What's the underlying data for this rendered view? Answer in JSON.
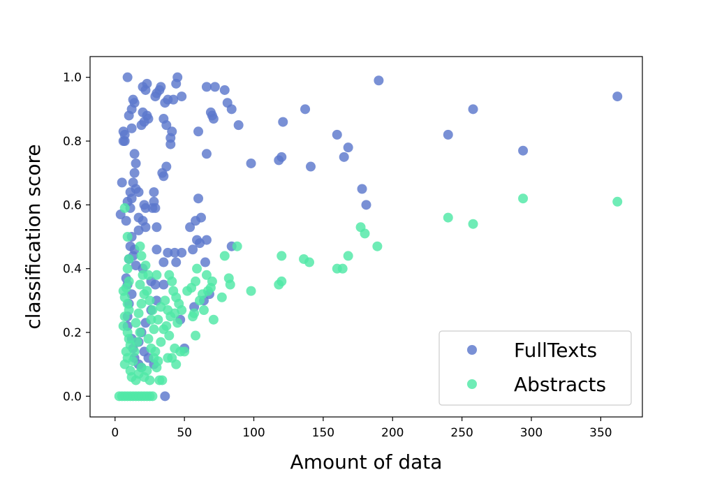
{
  "chart_data": {
    "type": "scatter",
    "title": "",
    "xlabel": "Amount of data",
    "ylabel": "classification score",
    "xlim": [
      -18,
      380
    ],
    "ylim": [
      -0.065,
      1.065
    ],
    "xticks": [
      "0",
      "50",
      "100",
      "150",
      "200",
      "250",
      "300",
      "350"
    ],
    "xtick_values": [
      0,
      50,
      100,
      150,
      200,
      250,
      300,
      350
    ],
    "yticks": [
      "0.0",
      "0.2",
      "0.4",
      "0.6",
      "0.8",
      "1.0"
    ],
    "ytick_values": [
      0.0,
      0.2,
      0.4,
      0.6,
      0.8,
      1.0
    ],
    "grid": false,
    "legend_position": "lower-right",
    "series": [
      {
        "name": "FullTexts",
        "color": "#5b78cc",
        "points": [
          [
            9,
            1.0
          ],
          [
            20,
            0.97
          ],
          [
            23,
            0.98
          ],
          [
            30,
            0.95
          ],
          [
            33,
            0.97
          ],
          [
            32,
            0.96
          ],
          [
            45,
            1.0
          ],
          [
            44,
            0.98
          ],
          [
            48,
            0.94
          ],
          [
            42,
            0.93
          ],
          [
            38,
            0.93
          ],
          [
            36,
            0.92
          ],
          [
            29,
            0.94
          ],
          [
            22,
            0.96
          ],
          [
            13,
            0.93
          ],
          [
            14,
            0.92
          ],
          [
            10,
            0.88
          ],
          [
            12,
            0.9
          ],
          [
            20,
            0.89
          ],
          [
            23,
            0.88
          ],
          [
            24,
            0.87
          ],
          [
            21,
            0.86
          ],
          [
            19,
            0.85
          ],
          [
            12,
            0.84
          ],
          [
            6,
            0.83
          ],
          [
            7,
            0.82
          ],
          [
            6,
            0.8
          ],
          [
            7,
            0.8
          ],
          [
            35,
            0.87
          ],
          [
            37,
            0.85
          ],
          [
            41,
            0.83
          ],
          [
            40,
            0.81
          ],
          [
            40,
            0.79
          ],
          [
            37,
            0.72
          ],
          [
            34,
            0.7
          ],
          [
            35,
            0.69
          ],
          [
            14,
            0.76
          ],
          [
            15,
            0.73
          ],
          [
            14,
            0.7
          ],
          [
            13,
            0.67
          ],
          [
            5,
            0.67
          ],
          [
            11,
            0.64
          ],
          [
            15,
            0.65
          ],
          [
            17,
            0.64
          ],
          [
            9,
            0.61
          ],
          [
            12,
            0.62
          ],
          [
            21,
            0.6
          ],
          [
            22,
            0.59
          ],
          [
            27,
            0.59
          ],
          [
            28,
            0.64
          ],
          [
            28,
            0.61
          ],
          [
            29,
            0.59
          ],
          [
            4,
            0.57
          ],
          [
            11,
            0.59
          ],
          [
            17,
            0.56
          ],
          [
            20,
            0.55
          ],
          [
            22,
            0.53
          ],
          [
            17,
            0.52
          ],
          [
            8,
            0.55
          ],
          [
            12,
            0.5
          ],
          [
            11,
            0.47
          ],
          [
            14,
            0.46
          ],
          [
            13,
            0.44
          ],
          [
            10,
            0.43
          ],
          [
            15,
            0.41
          ],
          [
            20,
            0.4
          ],
          [
            30,
            0.53
          ],
          [
            30,
            0.46
          ],
          [
            38,
            0.45
          ],
          [
            43,
            0.45
          ],
          [
            48,
            0.45
          ],
          [
            44,
            0.42
          ],
          [
            35,
            0.42
          ],
          [
            58,
            0.55
          ],
          [
            62,
            0.56
          ],
          [
            54,
            0.53
          ],
          [
            56,
            0.46
          ],
          [
            59,
            0.49
          ],
          [
            61,
            0.48
          ],
          [
            66,
            0.49
          ],
          [
            65,
            0.42
          ],
          [
            60,
            0.62
          ],
          [
            60,
            0.83
          ],
          [
            66,
            0.76
          ],
          [
            66,
            0.97
          ],
          [
            72,
            0.97
          ],
          [
            69,
            0.89
          ],
          [
            70,
            0.88
          ],
          [
            71,
            0.87
          ],
          [
            79,
            0.96
          ],
          [
            81,
            0.92
          ],
          [
            84,
            0.9
          ],
          [
            89,
            0.85
          ],
          [
            84,
            0.47
          ],
          [
            8,
            0.37
          ],
          [
            9,
            0.35
          ],
          [
            12,
            0.32
          ],
          [
            10,
            0.29
          ],
          [
            9,
            0.25
          ],
          [
            9,
            0.22
          ],
          [
            12,
            0.18
          ],
          [
            13,
            0.15
          ],
          [
            14,
            0.12
          ],
          [
            17,
            0.1
          ],
          [
            19,
            0.09
          ],
          [
            26,
            0.36
          ],
          [
            29,
            0.35
          ],
          [
            35,
            0.35
          ],
          [
            30,
            0.3
          ],
          [
            26,
            0.27
          ],
          [
            22,
            0.23
          ],
          [
            19,
            0.2
          ],
          [
            17,
            0.17
          ],
          [
            21,
            0.14
          ],
          [
            24,
            0.12
          ],
          [
            28,
            0.1
          ],
          [
            57,
            0.28
          ],
          [
            64,
            0.3
          ],
          [
            68,
            0.32
          ],
          [
            47,
            0.24
          ],
          [
            50,
            0.15
          ],
          [
            36,
            0.0
          ],
          [
            98,
            0.73
          ],
          [
            118,
            0.74
          ],
          [
            120,
            0.75
          ],
          [
            121,
            0.86
          ],
          [
            137,
            0.9
          ],
          [
            141,
            0.72
          ],
          [
            160,
            0.82
          ],
          [
            165,
            0.75
          ],
          [
            168,
            0.78
          ],
          [
            178,
            0.65
          ],
          [
            181,
            0.6
          ],
          [
            190,
            0.99
          ],
          [
            240,
            0.82
          ],
          [
            258,
            0.9
          ],
          [
            294,
            0.77
          ],
          [
            362,
            0.94
          ]
        ]
      },
      {
        "name": "Abstracts",
        "color": "#4fe8a6",
        "points": [
          [
            3,
            0.0
          ],
          [
            5,
            0.0
          ],
          [
            7,
            0.0
          ],
          [
            9,
            0.0
          ],
          [
            11,
            0.0
          ],
          [
            13,
            0.0
          ],
          [
            15,
            0.0
          ],
          [
            17,
            0.0
          ],
          [
            19,
            0.0
          ],
          [
            21,
            0.0
          ],
          [
            23,
            0.0
          ],
          [
            25,
            0.0
          ],
          [
            27,
            0.0
          ],
          [
            7,
            0.59
          ],
          [
            9,
            0.5
          ],
          [
            10,
            0.43
          ],
          [
            9,
            0.4
          ],
          [
            10,
            0.36
          ],
          [
            8,
            0.34
          ],
          [
            6,
            0.33
          ],
          [
            7,
            0.31
          ],
          [
            9,
            0.29
          ],
          [
            10,
            0.27
          ],
          [
            7,
            0.25
          ],
          [
            6,
            0.22
          ],
          [
            9,
            0.2
          ],
          [
            10,
            0.18
          ],
          [
            11,
            0.16
          ],
          [
            8,
            0.14
          ],
          [
            9,
            0.12
          ],
          [
            7,
            0.1
          ],
          [
            11,
            0.08
          ],
          [
            12,
            0.06
          ],
          [
            15,
            0.05
          ],
          [
            17,
            0.07
          ],
          [
            19,
            0.09
          ],
          [
            21,
            0.06
          ],
          [
            23,
            0.08
          ],
          [
            25,
            0.05
          ],
          [
            13,
            0.11
          ],
          [
            14,
            0.14
          ],
          [
            16,
            0.17
          ],
          [
            18,
            0.2
          ],
          [
            15,
            0.23
          ],
          [
            17,
            0.26
          ],
          [
            19,
            0.29
          ],
          [
            21,
            0.32
          ],
          [
            18,
            0.35
          ],
          [
            20,
            0.38
          ],
          [
            19,
            0.44
          ],
          [
            18,
            0.47
          ],
          [
            22,
            0.41
          ],
          [
            24,
            0.38
          ],
          [
            23,
            0.33
          ],
          [
            25,
            0.3
          ],
          [
            27,
            0.27
          ],
          [
            26,
            0.24
          ],
          [
            28,
            0.21
          ],
          [
            24,
            0.18
          ],
          [
            26,
            0.15
          ],
          [
            28,
            0.12
          ],
          [
            30,
            0.09
          ],
          [
            32,
            0.05
          ],
          [
            34,
            0.05
          ],
          [
            31,
            0.11
          ],
          [
            29,
            0.14
          ],
          [
            33,
            0.17
          ],
          [
            35,
            0.21
          ],
          [
            31,
            0.24
          ],
          [
            33,
            0.28
          ],
          [
            36,
            0.3
          ],
          [
            38,
            0.27
          ],
          [
            40,
            0.25
          ],
          [
            37,
            0.22
          ],
          [
            39,
            0.19
          ],
          [
            30,
            0.38
          ],
          [
            39,
            0.38
          ],
          [
            41,
            0.36
          ],
          [
            42,
            0.33
          ],
          [
            44,
            0.31
          ],
          [
            46,
            0.29
          ],
          [
            43,
            0.26
          ],
          [
            45,
            0.23
          ],
          [
            43,
            0.15
          ],
          [
            41,
            0.12
          ],
          [
            44,
            0.1
          ],
          [
            38,
            0.12
          ],
          [
            47,
            0.14
          ],
          [
            50,
            0.14
          ],
          [
            48,
            0.27
          ],
          [
            52,
            0.33
          ],
          [
            55,
            0.34
          ],
          [
            58,
            0.36
          ],
          [
            59,
            0.4
          ],
          [
            57,
            0.26
          ],
          [
            56,
            0.25
          ],
          [
            58,
            0.19
          ],
          [
            61,
            0.3
          ],
          [
            63,
            0.32
          ],
          [
            64,
            0.27
          ],
          [
            67,
            0.33
          ],
          [
            69,
            0.34
          ],
          [
            66,
            0.38
          ],
          [
            70,
            0.36
          ],
          [
            71,
            0.24
          ],
          [
            77,
            0.31
          ],
          [
            79,
            0.44
          ],
          [
            82,
            0.37
          ],
          [
            83,
            0.35
          ],
          [
            88,
            0.47
          ],
          [
            98,
            0.33
          ],
          [
            118,
            0.35
          ],
          [
            120,
            0.36
          ],
          [
            120,
            0.44
          ],
          [
            136,
            0.43
          ],
          [
            140,
            0.42
          ],
          [
            160,
            0.4
          ],
          [
            164,
            0.4
          ],
          [
            168,
            0.44
          ],
          [
            177,
            0.53
          ],
          [
            180,
            0.51
          ],
          [
            189,
            0.47
          ],
          [
            240,
            0.56
          ],
          [
            258,
            0.54
          ],
          [
            294,
            0.62
          ],
          [
            362,
            0.61
          ]
        ]
      }
    ]
  }
}
